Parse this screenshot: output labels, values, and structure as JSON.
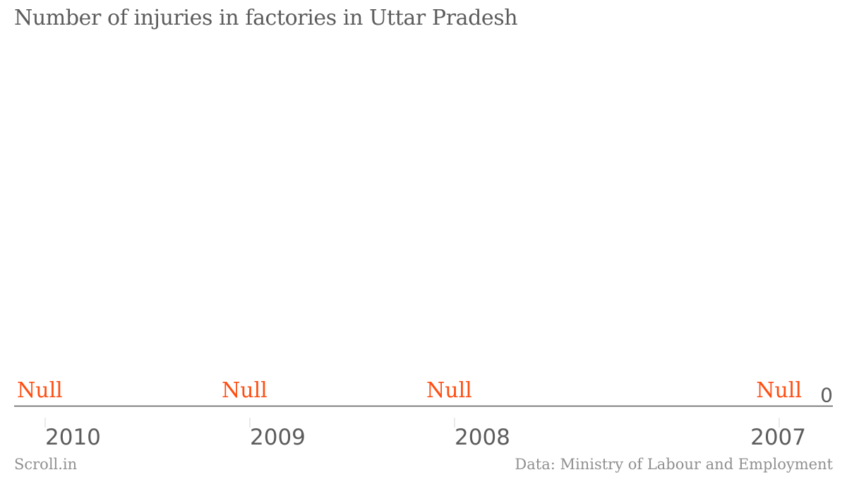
{
  "chart_data": {
    "type": "bar",
    "title": "Number of injuries in factories in Uttar Pradesh",
    "categories": [
      "2010",
      "2009",
      "2008",
      "2007"
    ],
    "values": [
      null,
      null,
      null,
      null
    ],
    "data_labels": [
      "Null",
      "Null",
      "Null",
      "Null"
    ],
    "y_ticks": [
      "0"
    ],
    "ylim": [
      0,
      1
    ],
    "xlabel": "",
    "ylabel": "",
    "grid": false,
    "colors": {
      "label": "#ff4e12",
      "text": "#5c5c5c",
      "axis": "#5c5c5c",
      "tick": "#d4d4d4",
      "footer": "#8f8f8f"
    }
  },
  "footer": {
    "brand": "Scroll.in",
    "source": "Data: Ministry of Labour and Employment"
  }
}
